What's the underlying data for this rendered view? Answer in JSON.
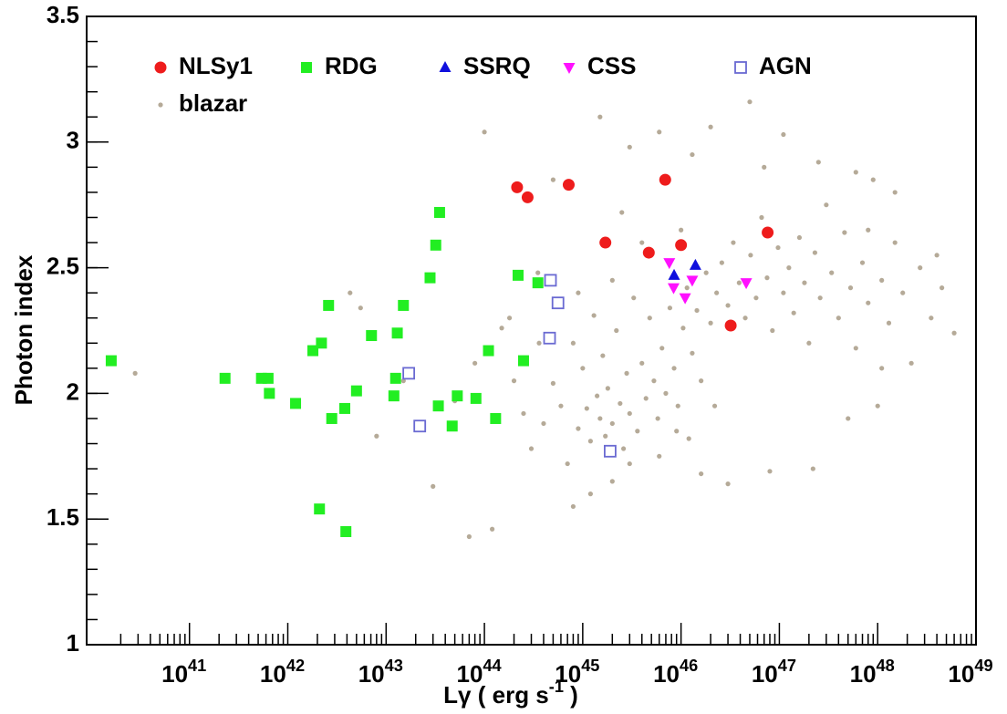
{
  "chart_data": {
    "type": "scatter",
    "x_label": "Lγ ( erg s^{-1} )",
    "y_label": "Photon  index",
    "xscale": "log",
    "xlim": [
      9e+39,
      1e+49
    ],
    "xticks": [
      {
        "value": 1e+41,
        "label": "10^{41}"
      },
      {
        "value": 1e+42,
        "label": "10^{42}"
      },
      {
        "value": 1e+43,
        "label": "10^{43}"
      },
      {
        "value": 1e+44,
        "label": "10^{44}"
      },
      {
        "value": 1e+45,
        "label": "10^{45}"
      },
      {
        "value": 1e+46,
        "label": "10^{46}"
      },
      {
        "value": 1e+47,
        "label": "10^{47}"
      },
      {
        "value": 1e+48,
        "label": "10^{48}"
      },
      {
        "value": 1e+49,
        "label": "10^{49}"
      }
    ],
    "ylim": [
      1,
      3.5
    ],
    "yticks": [
      1,
      1.5,
      2,
      2.5,
      3,
      3.5
    ],
    "grid": false,
    "series": [
      {
        "name": "blazar",
        "color": "#b5aa98",
        "marker": "dot",
        "x": [
          2.8e+40,
          4.3e+42,
          5.5e+42,
          8e+42,
          1.5e+43,
          3e+43,
          5e+43,
          8e+43,
          1.2e+44,
          7e+43,
          1.5e+44,
          2e+44,
          2.5e+44,
          3e+44,
          3.5e+44,
          4e+44,
          5e+44,
          6e+44,
          7e+44,
          8e+44,
          9e+44,
          1e+45,
          1.1e+45,
          1.2e+45,
          1.3e+45,
          1.4e+45,
          1.5e+45,
          1.6e+45,
          1.7e+45,
          1.8e+45,
          2e+45,
          2.2e+45,
          2.4e+45,
          2.6e+45,
          2.8e+45,
          3e+45,
          3.3e+45,
          3.6e+45,
          4e+45,
          4.4e+45,
          4.8e+45,
          5.3e+45,
          5.8e+45,
          6.4e+45,
          7e+45,
          7.7e+45,
          8.5e+45,
          9.3e+45,
          1.05e+46,
          1.15e+46,
          1.3e+46,
          1.45e+46,
          1.6e+46,
          1.8e+46,
          2e+46,
          2.3e+46,
          2.6e+46,
          3e+46,
          3.4e+46,
          3.9e+46,
          4.5e+46,
          5.1e+46,
          5.8e+46,
          6.6e+46,
          7.5e+46,
          8.5e+46,
          9.7e+46,
          1.1e+47,
          1.25e+47,
          1.4e+47,
          1.6e+47,
          1.8e+47,
          2e+47,
          2.3e+47,
          2.6e+47,
          3e+47,
          3.4e+47,
          4e+47,
          4.6e+47,
          5.3e+47,
          6e+47,
          7e+47,
          8e+47,
          9e+47,
          1.1e+48,
          1.3e+48,
          1.5e+48,
          1.8e+48,
          2.2e+48,
          2.7e+48,
          3.5e+48,
          4.5e+48,
          6e+48,
          2e+45,
          1.2e+45,
          3e+45,
          6e+45,
          1.2e+46,
          1.6e+46,
          8e+44,
          5e+44,
          1e+44,
          1.5e+45,
          3e+45,
          6e+45,
          1.3e+46,
          2e+46,
          5e+46,
          1.1e+47,
          2.5e+47,
          6e+47,
          1.5e+48,
          1e+48,
          5e+47,
          2.2e+47,
          8e+46,
          3e+46,
          1.1e+48,
          4e+45,
          2.5e+45,
          1.8e+44,
          3.6e+44,
          9e+44,
          2e+45,
          1e+46,
          7e+46,
          8e+47,
          4e+48,
          9e+45,
          2.2e+46
        ],
        "y": [
          2.08,
          2.4,
          2.34,
          1.83,
          2.05,
          1.63,
          1.97,
          2.12,
          1.46,
          1.43,
          2.26,
          2.05,
          1.92,
          1.78,
          2.48,
          1.88,
          2.04,
          1.95,
          1.72,
          2.2,
          1.86,
          2.1,
          1.94,
          1.81,
          2.31,
          1.99,
          1.9,
          2.15,
          1.83,
          2.02,
          1.88,
          2.25,
          1.96,
          1.78,
          2.08,
          1.92,
          2.38,
          1.85,
          2.12,
          1.98,
          2.3,
          2.05,
          1.9,
          2.18,
          2.0,
          2.34,
          2.1,
          1.95,
          2.26,
          2.42,
          2.16,
          2.33,
          2.05,
          2.48,
          2.28,
          2.4,
          2.52,
          2.35,
          2.6,
          2.44,
          2.3,
          2.55,
          2.38,
          2.7,
          2.46,
          2.25,
          2.58,
          2.4,
          2.5,
          2.32,
          2.62,
          2.44,
          2.2,
          2.56,
          2.38,
          2.75,
          2.48,
          2.3,
          2.64,
          2.42,
          2.18,
          2.52,
          2.36,
          2.85,
          2.45,
          2.28,
          2.6,
          2.4,
          2.12,
          2.5,
          2.3,
          2.42,
          2.24,
          1.65,
          1.6,
          1.72,
          1.75,
          1.82,
          1.68,
          1.55,
          2.85,
          3.04,
          3.1,
          2.98,
          3.04,
          2.95,
          3.06,
          3.16,
          3.03,
          2.92,
          2.88,
          2.8,
          1.95,
          1.9,
          1.7,
          1.69,
          1.64,
          2.1,
          2.6,
          2.72,
          2.3,
          2.2,
          2.4,
          2.45,
          2.65,
          2.9,
          2.65,
          2.55,
          1.85,
          1.95
        ]
      },
      {
        "name": "NLSy1",
        "color": "#ee1c1c",
        "marker": "circle",
        "x": [
          2.15e+44,
          2.75e+44,
          7.2e+44,
          1.7e+45,
          6.9e+45,
          4.7e+45,
          1e+46,
          7.6e+46,
          3.2e+46
        ],
        "y": [
          2.82,
          2.78,
          2.83,
          2.6,
          2.85,
          2.56,
          2.59,
          2.64,
          2.27
        ]
      },
      {
        "name": "RDG",
        "color": "#22ee22",
        "marker": "square",
        "x": [
          1.6e+40,
          2.3e+41,
          5.4e+41,
          6.3e+41,
          6.5e+41,
          1.2e+42,
          2.6e+42,
          2.2e+42,
          1.8e+42,
          2.8e+42,
          3.8e+42,
          5e+42,
          7.1e+42,
          2.1e+42,
          3.9e+42,
          1.2e+43,
          1.25e+43,
          1.3e+43,
          1.5e+43,
          2.8e+43,
          3.2e+43,
          3.5e+43,
          3.4e+43,
          4.7e+43,
          5.3e+43,
          8.2e+43,
          1.1e+44,
          1.3e+44,
          2.2e+44,
          3.5e+44,
          2.5e+44
        ],
        "y": [
          2.13,
          2.06,
          2.06,
          2.06,
          2.0,
          1.96,
          2.35,
          2.2,
          2.17,
          1.9,
          1.94,
          2.01,
          2.23,
          1.54,
          1.45,
          1.99,
          2.06,
          2.24,
          2.35,
          2.46,
          2.59,
          2.72,
          1.95,
          1.87,
          1.99,
          1.98,
          2.17,
          1.9,
          2.47,
          2.44,
          2.13
        ]
      },
      {
        "name": "SSRQ",
        "color": "#1010dd",
        "marker": "triangle-up",
        "x": [
          8.5e+45,
          1.4e+46
        ],
        "y": [
          2.47,
          2.51
        ]
      },
      {
        "name": "CSS",
        "color": "#ff10ff",
        "marker": "triangle-down",
        "x": [
          7.6e+45,
          8.4e+45,
          1.1e+46,
          1.3e+46,
          4.6e+46
        ],
        "y": [
          2.52,
          2.42,
          2.38,
          2.45,
          2.44
        ]
      },
      {
        "name": "AGN",
        "color": "#6a6ad2",
        "marker": "open-square",
        "x": [
          1.7e+43,
          2.2e+43,
          4.7e+44,
          5.6e+44,
          4.6e+44,
          1.9e+45
        ],
        "y": [
          2.08,
          1.87,
          2.45,
          2.36,
          2.22,
          1.77
        ]
      }
    ]
  }
}
